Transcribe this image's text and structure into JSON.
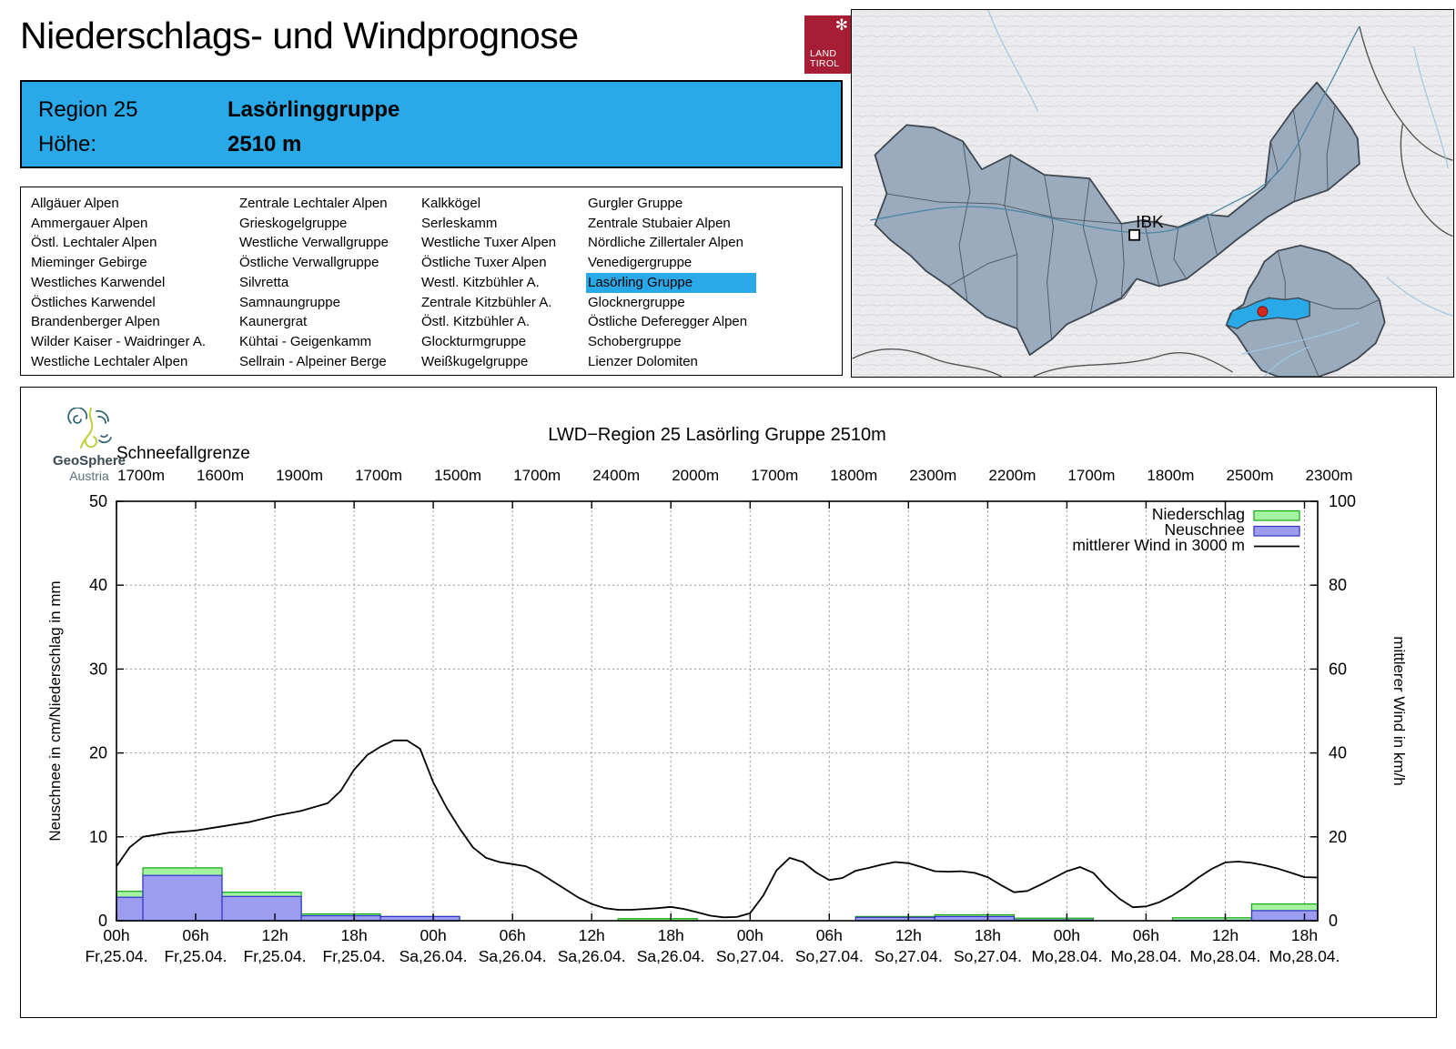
{
  "colors": {
    "accent_blue": "#29A9E8",
    "tirol_red": "#A51E34",
    "map_region_fill": "#9AABBE",
    "map_highlight": "#29A9E8",
    "marker_red": "#D62A1E"
  },
  "header": {
    "title": "Niederschlags- und Windprognose",
    "logo_line1": "LAND",
    "logo_line2": "TIROL"
  },
  "info_box": {
    "region_label": "Region 25",
    "region_name": "Lasörlinggruppe",
    "height_label": "Höhe:",
    "height_value": "2510 m"
  },
  "region_list": {
    "highlighted": "Lasörling Gruppe",
    "columns": [
      [
        "Allgäuer Alpen",
        "Ammergauer Alpen",
        "Östl. Lechtaler Alpen",
        "Mieminger Gebirge",
        "Westliches Karwendel",
        "Östliches Karwendel",
        "Brandenberger Alpen",
        "Wilder Kaiser - Waidringer A.",
        "Westliche Lechtaler Alpen"
      ],
      [
        "Zentrale Lechtaler Alpen",
        "Grieskogelgruppe",
        "Westliche Verwallgruppe",
        "Östliche Verwallgruppe",
        "Silvretta",
        "Samnaungruppe",
        "Kaunergrat",
        "Kühtai - Geigenkamm",
        "Sellrain - Alpeiner Berge"
      ],
      [
        "Kalkkögel",
        "Serleskamm",
        "Westliche Tuxer Alpen",
        "Östliche Tuxer Alpen",
        "Westl. Kitzbühler A.",
        "Zentrale Kitzbühler A.",
        "Östl. Kitzbühler A.",
        "Glockturmgruppe",
        "Weißkugelgruppe"
      ],
      [
        "Gurgler Gruppe",
        "Zentrale Stubaier Alpen",
        "Nördliche Zillertaler Alpen",
        "Venedigergruppe",
        "Lasörling Gruppe",
        "Glocknergruppe",
        "Östliche Deferegger Alpen",
        "Schobergruppe",
        "Lienzer Dolomiten"
      ]
    ]
  },
  "map": {
    "city_label": "IBK"
  },
  "branding": {
    "name": "GeoSphere",
    "country": "Austria"
  },
  "chart_data": {
    "type": "composite bar + line",
    "title": "LWD−Region 25 Lasörling Gruppe 2510m",
    "snowline": {
      "label": "Schneefallgrenze",
      "values": [
        "1700m",
        "1600m",
        "1900m",
        "1700m",
        "1500m",
        "1700m",
        "2400m",
        "2000m",
        "1700m",
        "1800m",
        "2300m",
        "2200m",
        "1700m",
        "1800m",
        "2500m",
        "2300m"
      ]
    },
    "y_left": {
      "label": "Neuschnee in cm/Niederschlag in mm",
      "min": 0,
      "max": 50,
      "ticks": [
        0,
        10,
        20,
        30,
        40,
        50
      ]
    },
    "y_right": {
      "label": "mittlerer Wind in km/h",
      "min": 0,
      "max": 100,
      "ticks": [
        0,
        20,
        40,
        60,
        80,
        100
      ]
    },
    "x_axis": {
      "hours_total": 91,
      "tick_interval_h": 6
    },
    "x_ticks": [
      {
        "time": "00h",
        "date": "Fr,25.04."
      },
      {
        "time": "06h",
        "date": "Fr,25.04."
      },
      {
        "time": "12h",
        "date": "Fr,25.04."
      },
      {
        "time": "18h",
        "date": "Fr,25.04."
      },
      {
        "time": "00h",
        "date": "Sa,26.04."
      },
      {
        "time": "06h",
        "date": "Sa,26.04."
      },
      {
        "time": "12h",
        "date": "Sa,26.04."
      },
      {
        "time": "18h",
        "date": "Sa,26.04."
      },
      {
        "time": "00h",
        "date": "So,27.04."
      },
      {
        "time": "06h",
        "date": "So,27.04."
      },
      {
        "time": "12h",
        "date": "So,27.04."
      },
      {
        "time": "18h",
        "date": "So,27.04."
      },
      {
        "time": "00h",
        "date": "Mo,28.04."
      },
      {
        "time": "06h",
        "date": "Mo,28.04."
      },
      {
        "time": "12h",
        "date": "Mo,28.04."
      },
      {
        "time": "18h",
        "date": "Mo,28.04."
      }
    ],
    "legend": [
      {
        "label": "Niederschlag",
        "type": "bar",
        "fill": "#A5F2A0",
        "stroke": "#12A712"
      },
      {
        "label": "Neuschnee",
        "type": "bar",
        "fill": "#9C9CF0",
        "stroke": "#3333CC"
      },
      {
        "label": "mittlerer Wind in 3000 m",
        "type": "line",
        "stroke": "#000000"
      }
    ],
    "bars": [
      {
        "from": 0,
        "to": 2,
        "precip_mm": 3.5,
        "snow_cm": 2.8
      },
      {
        "from": 2,
        "to": 8,
        "precip_mm": 6.3,
        "snow_cm": 5.4
      },
      {
        "from": 8,
        "to": 14,
        "precip_mm": 3.4,
        "snow_cm": 2.9
      },
      {
        "from": 14,
        "to": 20,
        "precip_mm": 0.8,
        "snow_cm": 0.6
      },
      {
        "from": 20,
        "to": 26,
        "precip_mm": 0.5,
        "snow_cm": 0.5
      },
      {
        "from": 38,
        "to": 44,
        "precip_mm": 0.25,
        "snow_cm": 0
      },
      {
        "from": 56,
        "to": 62,
        "precip_mm": 0.5,
        "snow_cm": 0.4
      },
      {
        "from": 62,
        "to": 68,
        "precip_mm": 0.7,
        "snow_cm": 0.5
      },
      {
        "from": 68,
        "to": 74,
        "precip_mm": 0.3,
        "snow_cm": 0.1
      },
      {
        "from": 80,
        "to": 86,
        "precip_mm": 0.35,
        "snow_cm": 0.05
      },
      {
        "from": 86,
        "to": 91,
        "precip_mm": 2.0,
        "snow_cm": 1.2
      }
    ],
    "wind_kmh": [
      [
        0,
        13
      ],
      [
        1,
        17.5
      ],
      [
        2,
        20
      ],
      [
        4,
        21
      ],
      [
        6,
        21.5
      ],
      [
        8,
        22.5
      ],
      [
        10,
        23.5
      ],
      [
        12,
        25
      ],
      [
        14,
        26.2
      ],
      [
        16,
        28
      ],
      [
        17,
        31
      ],
      [
        18,
        36
      ],
      [
        19,
        39.5
      ],
      [
        20,
        41.5
      ],
      [
        21,
        43
      ],
      [
        22,
        43
      ],
      [
        23,
        41
      ],
      [
        24,
        33
      ],
      [
        25,
        27
      ],
      [
        26,
        22
      ],
      [
        27,
        17.5
      ],
      [
        28,
        15
      ],
      [
        29,
        14
      ],
      [
        30,
        13.5
      ],
      [
        31,
        13
      ],
      [
        32,
        11.5
      ],
      [
        33,
        9.5
      ],
      [
        34,
        7.5
      ],
      [
        35,
        5.5
      ],
      [
        36,
        4
      ],
      [
        37,
        3
      ],
      [
        38,
        2.6
      ],
      [
        39,
        2.6
      ],
      [
        40,
        2.8
      ],
      [
        41,
        3
      ],
      [
        42,
        3.3
      ],
      [
        43,
        2.8
      ],
      [
        44,
        2
      ],
      [
        45,
        1.2
      ],
      [
        46,
        0.8
      ],
      [
        47,
        0.9
      ],
      [
        48,
        1.8
      ],
      [
        49,
        6
      ],
      [
        50,
        12
      ],
      [
        51,
        15
      ],
      [
        52,
        14
      ],
      [
        53,
        11.5
      ],
      [
        54,
        9.7
      ],
      [
        55,
        10.2
      ],
      [
        56,
        11.9
      ],
      [
        57,
        12.6
      ],
      [
        58,
        13.4
      ],
      [
        59,
        14
      ],
      [
        60,
        13.7
      ],
      [
        61,
        12.8
      ],
      [
        62,
        11.8
      ],
      [
        63,
        11.7
      ],
      [
        64,
        11.8
      ],
      [
        65,
        11.4
      ],
      [
        66,
        10.4
      ],
      [
        67,
        8.5
      ],
      [
        68,
        6.8
      ],
      [
        69,
        7.1
      ],
      [
        70,
        8.6
      ],
      [
        71,
        10.2
      ],
      [
        72,
        11.8
      ],
      [
        73,
        12.8
      ],
      [
        74,
        11.4
      ],
      [
        75,
        8
      ],
      [
        76,
        5.2
      ],
      [
        77,
        3.2
      ],
      [
        78,
        3.4
      ],
      [
        79,
        4.4
      ],
      [
        80,
        6
      ],
      [
        81,
        8
      ],
      [
        82,
        10.4
      ],
      [
        83,
        12.4
      ],
      [
        84,
        13.9
      ],
      [
        85,
        14.1
      ],
      [
        86,
        13.8
      ],
      [
        87,
        13.2
      ],
      [
        88,
        12.4
      ],
      [
        89,
        11.4
      ],
      [
        90,
        10.4
      ],
      [
        91,
        10.3
      ]
    ]
  }
}
